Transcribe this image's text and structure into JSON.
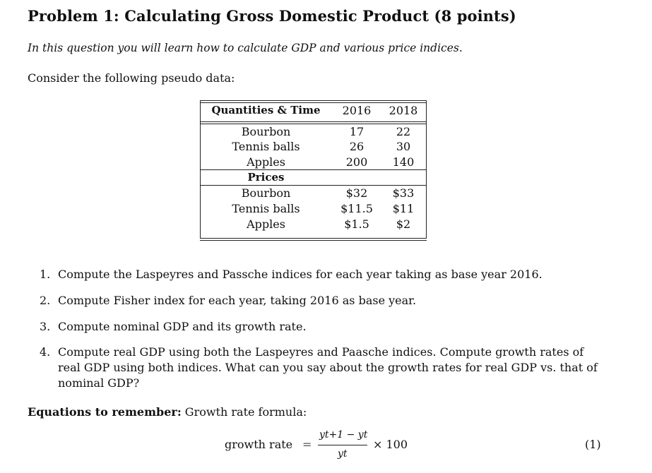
{
  "title": "Problem 1: Calculating Gross Domestic Product (8 points)",
  "intro": "In this question you will learn how to calculate GDP and various price indices.",
  "consider": "Consider the following pseudo data:",
  "table": {
    "header": {
      "label": "Quantities & Time",
      "y1": "2016",
      "y2": "2018"
    },
    "quantities": [
      {
        "item": "Bourbon",
        "y1": "17",
        "y2": "22"
      },
      {
        "item": "Tennis balls",
        "y1": "26",
        "y2": "30"
      },
      {
        "item": "Apples",
        "y1": "200",
        "y2": "140"
      }
    ],
    "prices_label": "Prices",
    "prices": [
      {
        "item": "Bourbon",
        "y1": "$32",
        "y2": "$33"
      },
      {
        "item": "Tennis balls",
        "y1": "$11.5",
        "y2": "$11"
      },
      {
        "item": "Apples",
        "y1": "$1.5",
        "y2": "$2"
      }
    ]
  },
  "questions": [
    {
      "num": "1.",
      "text": "Compute the Laspeyres and Passche indices for each year taking as base year 2016."
    },
    {
      "num": "2.",
      "text": "Compute Fisher index for each year, taking 2016 as base year."
    },
    {
      "num": "3.",
      "text": "Compute nominal GDP and its growth rate."
    },
    {
      "num": "4.",
      "text": "Compute real GDP using both the Laspeyres and Paasche indices. Compute growth rates of real GDP using both indices. What can you say about the growth rates for real GDP vs. that of nominal GDP?"
    }
  ],
  "equations": {
    "label": "Equations to remember:",
    "text": " Growth rate formula:"
  },
  "formula": {
    "lhs": "growth rate",
    "eq": "=",
    "numerator": "yt+1 − yt",
    "denominator": "yt",
    "times": "× 100",
    "tag": "(1)"
  }
}
